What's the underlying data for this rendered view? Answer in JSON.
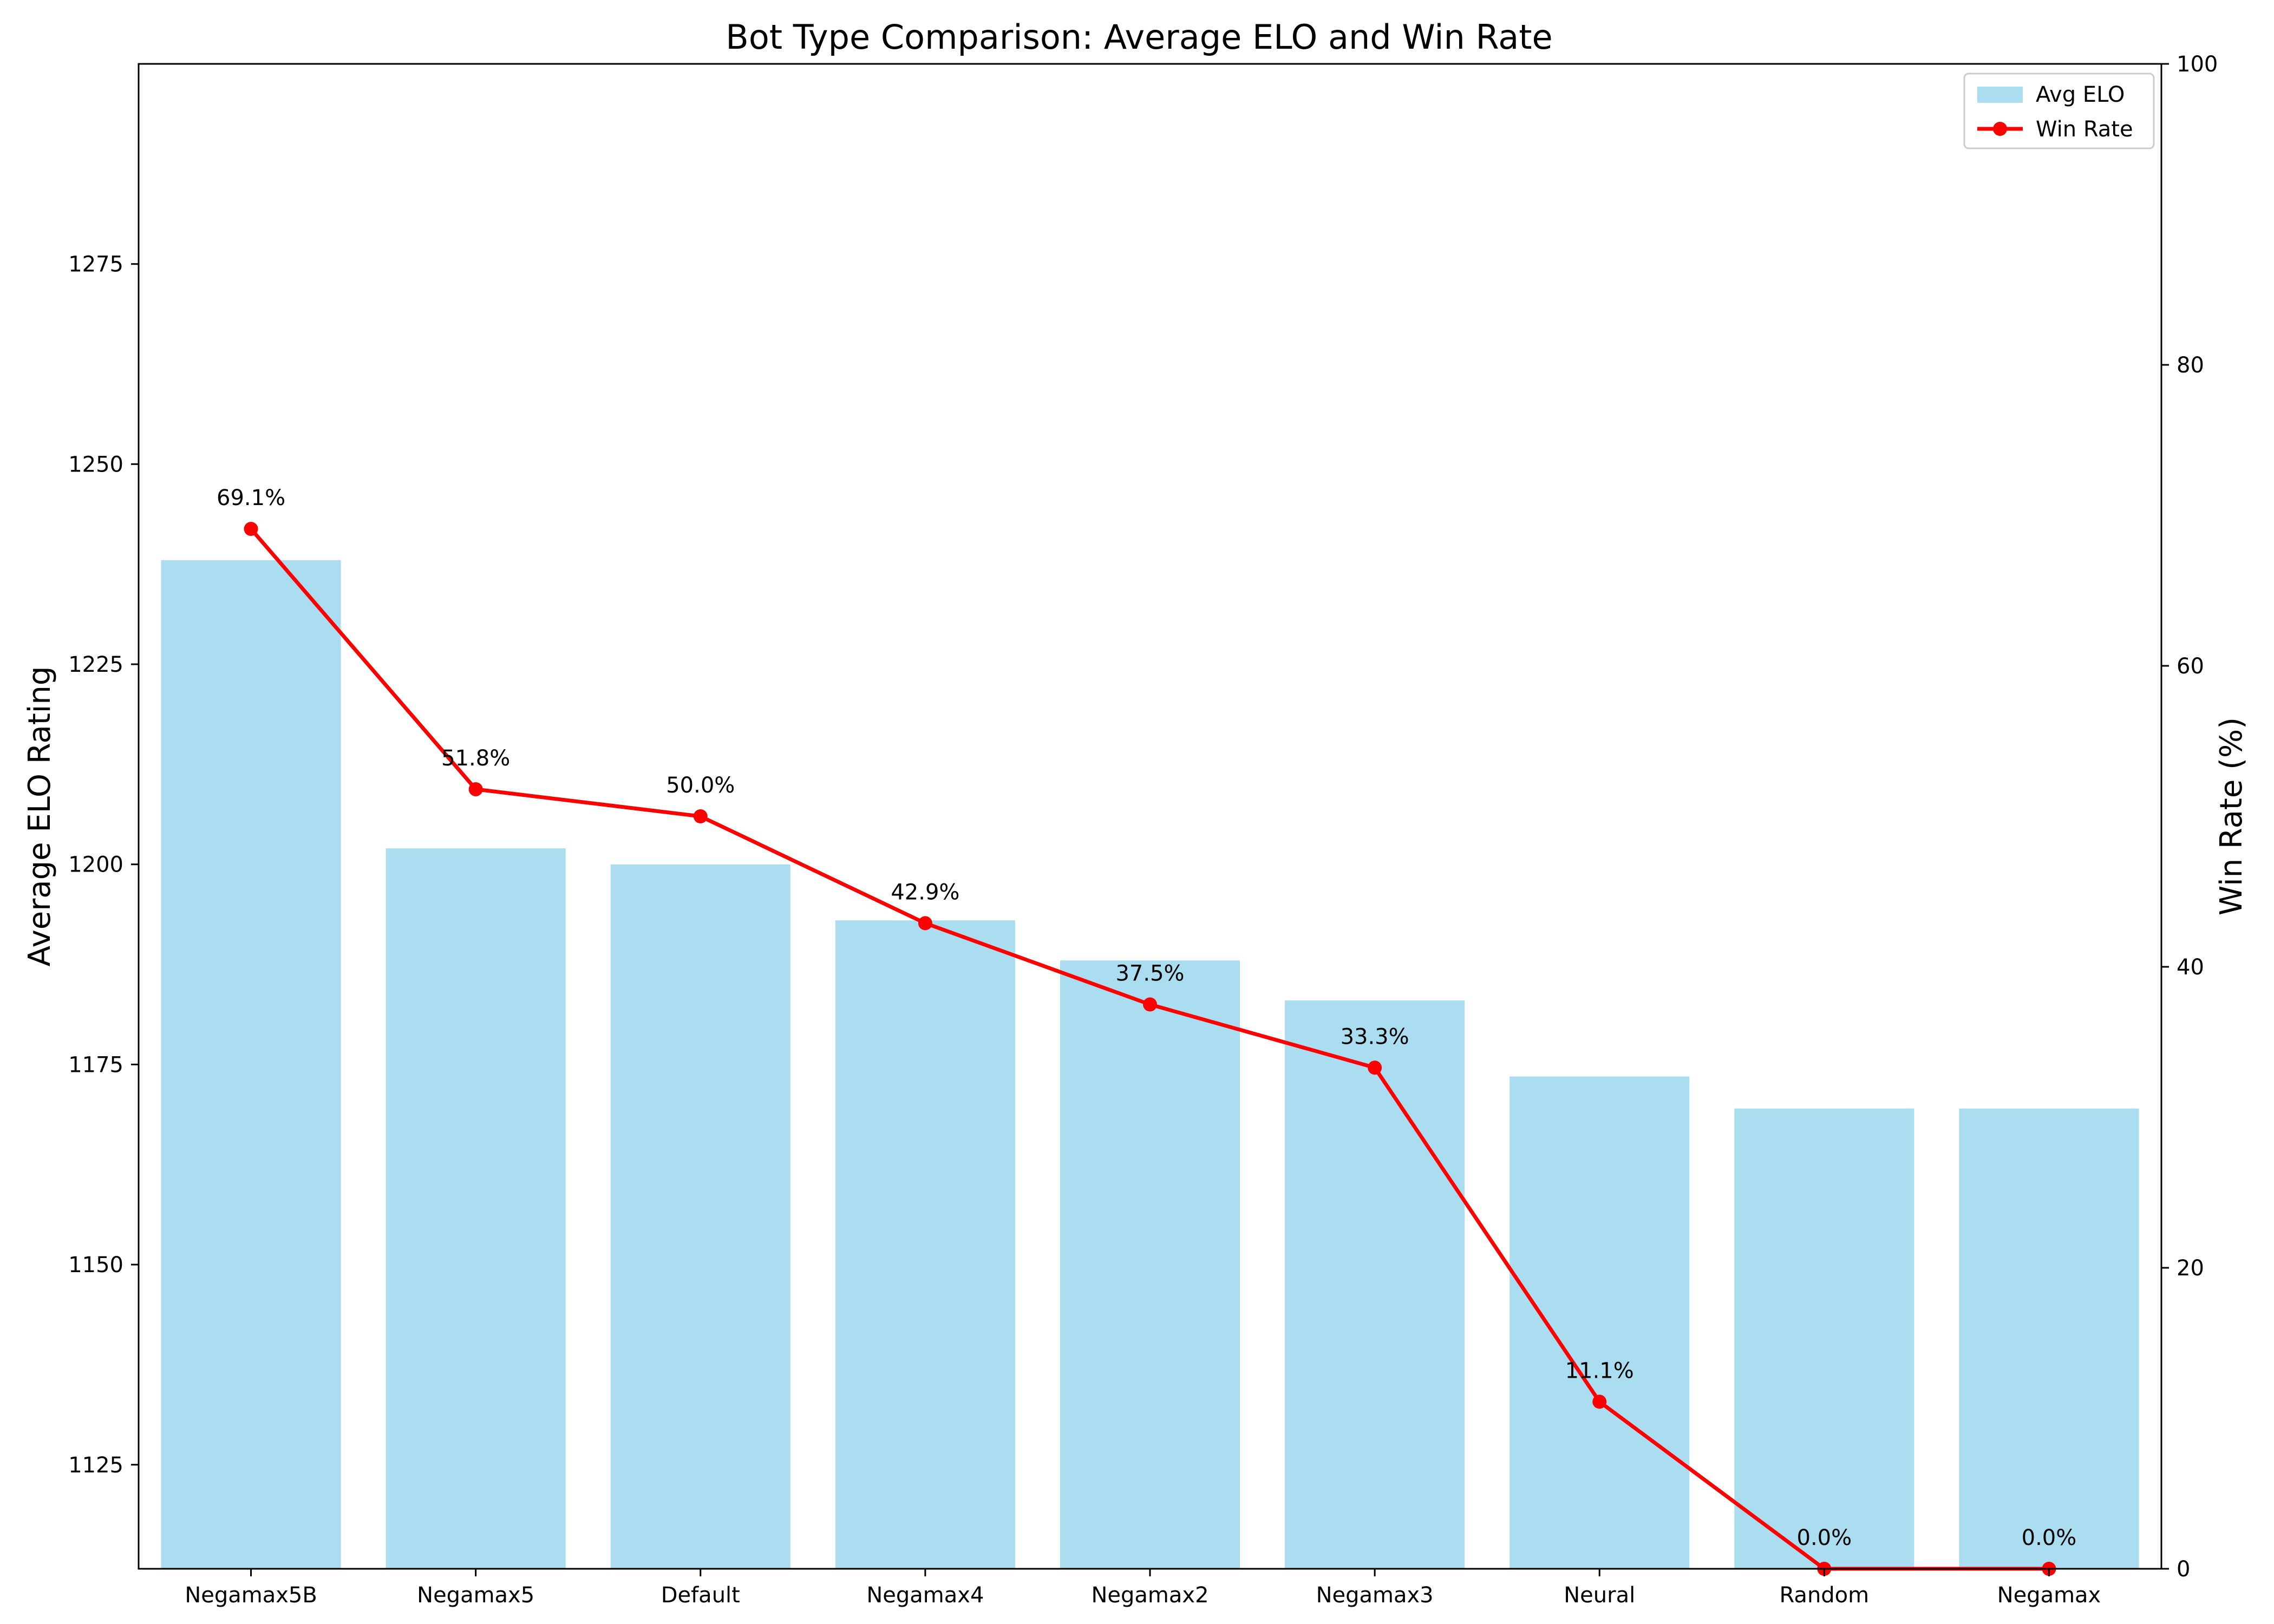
{
  "chart_data": {
    "type": "bar",
    "title": "Bot Type Comparison: Average ELO and Win Rate",
    "xlabel": "",
    "ylabel": "Average ELO Rating",
    "y2label": "Win Rate (%)",
    "categories": [
      "Negamax5B",
      "Negamax5",
      "Default",
      "Negamax4",
      "Negamax2",
      "Negamax3",
      "Neural",
      "Random",
      "Negamax"
    ],
    "ylim": [
      1112,
      1300
    ],
    "yticks": [
      1125,
      1150,
      1175,
      1200,
      1225,
      1250,
      1275
    ],
    "y2lim": [
      0,
      100
    ],
    "y2ticks": [
      0,
      20,
      40,
      60,
      80,
      100
    ],
    "grid": false,
    "legend_position": "top-right",
    "series": [
      {
        "name": "Avg ELO",
        "type": "bar",
        "axis": "left",
        "color": "#87CEEB",
        "values": [
          1238,
          1202,
          1200,
          1193,
          1188,
          1183,
          1173.5,
          1169.5,
          1169.5
        ]
      },
      {
        "name": "Win Rate",
        "type": "line",
        "axis": "right",
        "color": "#FF0000",
        "values": [
          69.1,
          51.8,
          50.0,
          42.9,
          37.5,
          33.3,
          11.1,
          0.0,
          0.0
        ],
        "labels": [
          "69.1%",
          "51.8%",
          "50.0%",
          "42.9%",
          "37.5%",
          "33.3%",
          "11.1%",
          "0.0%",
          "0.0%"
        ]
      }
    ]
  }
}
